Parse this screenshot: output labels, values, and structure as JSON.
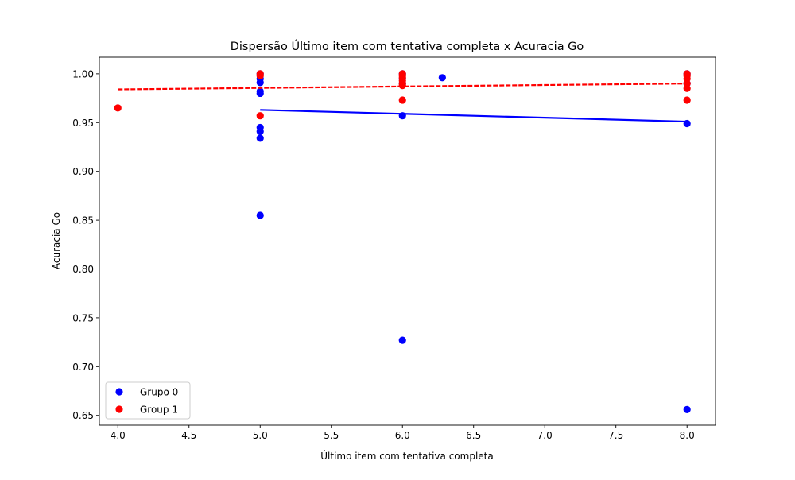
{
  "chart_data": {
    "type": "scatter",
    "title": "Dispersão Último item com tentativa completa x Acuracia Go",
    "xlabel": "Último item com tentativa completa",
    "ylabel": "Acuracia Go",
    "xlim": [
      3.87,
      8.2
    ],
    "ylim": [
      0.64,
      1.017
    ],
    "xticks": [
      "4.0",
      "4.5",
      "5.0",
      "5.5",
      "6.0",
      "6.5",
      "7.0",
      "7.5",
      "8.0"
    ],
    "yticks": [
      "0.65",
      "0.70",
      "0.75",
      "0.80",
      "0.85",
      "0.90",
      "0.95",
      "1.00"
    ],
    "grid": false,
    "legend_position": "lower-left",
    "series": [
      {
        "name": "Grupo 0",
        "color": "#0000ff",
        "points": [
          {
            "x": 5.0,
            "y": 1.0
          },
          {
            "x": 5.0,
            "y": 0.995
          },
          {
            "x": 5.0,
            "y": 0.991
          },
          {
            "x": 5.0,
            "y": 0.982
          },
          {
            "x": 5.0,
            "y": 0.98
          },
          {
            "x": 5.0,
            "y": 0.945
          },
          {
            "x": 5.0,
            "y": 0.941
          },
          {
            "x": 5.0,
            "y": 0.934
          },
          {
            "x": 5.0,
            "y": 0.855
          },
          {
            "x": 6.0,
            "y": 1.0
          },
          {
            "x": 6.0,
            "y": 0.995
          },
          {
            "x": 6.0,
            "y": 0.99
          },
          {
            "x": 6.0,
            "y": 0.957
          },
          {
            "x": 6.0,
            "y": 0.727
          },
          {
            "x": 6.28,
            "y": 0.996
          },
          {
            "x": 8.0,
            "y": 1.0
          },
          {
            "x": 8.0,
            "y": 0.99
          },
          {
            "x": 8.0,
            "y": 0.949
          },
          {
            "x": 8.0,
            "y": 0.656
          }
        ],
        "trend": {
          "x": [
            5.0,
            8.0
          ],
          "y": [
            0.963,
            0.951
          ]
        }
      },
      {
        "name": "Group 1",
        "color": "#ff0000",
        "points": [
          {
            "x": 4.0,
            "y": 0.965
          },
          {
            "x": 5.0,
            "y": 1.0
          },
          {
            "x": 5.0,
            "y": 0.998
          },
          {
            "x": 5.0,
            "y": 0.957
          },
          {
            "x": 6.0,
            "y": 1.0
          },
          {
            "x": 6.0,
            "y": 0.998
          },
          {
            "x": 6.0,
            "y": 0.996
          },
          {
            "x": 6.0,
            "y": 0.993
          },
          {
            "x": 6.0,
            "y": 0.99
          },
          {
            "x": 6.0,
            "y": 0.988
          },
          {
            "x": 6.0,
            "y": 0.973
          },
          {
            "x": 8.0,
            "y": 1.0
          },
          {
            "x": 8.0,
            "y": 0.998
          },
          {
            "x": 8.0,
            "y": 0.995
          },
          {
            "x": 8.0,
            "y": 0.99
          },
          {
            "x": 8.0,
            "y": 0.985
          },
          {
            "x": 8.0,
            "y": 0.973
          }
        ],
        "trend": {
          "x": [
            4.0,
            8.0
          ],
          "y": [
            0.984,
            0.99
          ]
        }
      }
    ]
  }
}
